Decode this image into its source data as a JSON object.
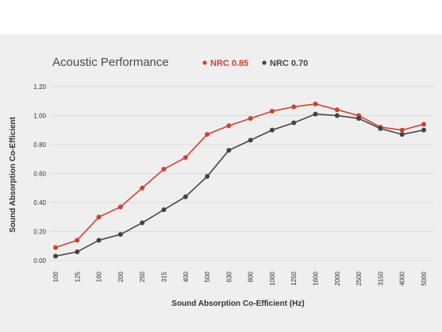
{
  "chart_data": {
    "type": "line",
    "title": "Acoustic Performance",
    "xlabel": "Sound Absorption Co-Efficient (Hz)",
    "ylabel": "Sound Absorption Co-Efficient",
    "ylim": [
      0,
      1.2
    ],
    "yticks": [
      "0.00",
      "0.20",
      "0.40",
      "0.60",
      "0.80",
      "1.00",
      "1.20"
    ],
    "categories": [
      "100",
      "125",
      "160",
      "200",
      "250",
      "315",
      "400",
      "500",
      "630",
      "800",
      "1000",
      "1250",
      "1600",
      "2000",
      "2500",
      "3150",
      "4000",
      "5000"
    ],
    "grid": "horizontal",
    "legend_position": "top",
    "series": [
      {
        "name": "NRC 0.85",
        "color": "#d2412c",
        "values": [
          0.09,
          0.14,
          0.3,
          0.37,
          0.5,
          0.63,
          0.71,
          0.87,
          0.93,
          0.98,
          1.03,
          1.06,
          1.08,
          1.04,
          1.0,
          0.92,
          0.9,
          0.94
        ]
      },
      {
        "name": "NRC 0.70",
        "color": "#444444",
        "values": [
          0.03,
          0.06,
          0.14,
          0.18,
          0.26,
          0.35,
          0.44,
          0.58,
          0.76,
          0.83,
          0.9,
          0.95,
          1.01,
          1.0,
          0.98,
          0.91,
          0.87,
          0.9
        ]
      }
    ]
  }
}
